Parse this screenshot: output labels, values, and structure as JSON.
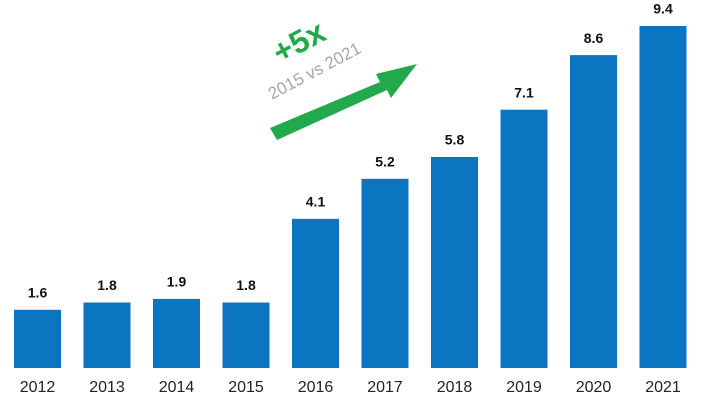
{
  "chart_data": {
    "type": "bar",
    "categories": [
      "2012",
      "2013",
      "2014",
      "2015",
      "2016",
      "2017",
      "2018",
      "2019",
      "2020",
      "2021"
    ],
    "values": [
      1.6,
      1.8,
      1.9,
      1.8,
      4.1,
      5.2,
      5.8,
      7.1,
      8.6,
      9.4
    ],
    "color": "#0b75c1",
    "annotations": [
      "+5x",
      "2015 vs 2021"
    ],
    "annotation_colors": [
      "#22a94b",
      "#a6a6a6"
    ]
  }
}
